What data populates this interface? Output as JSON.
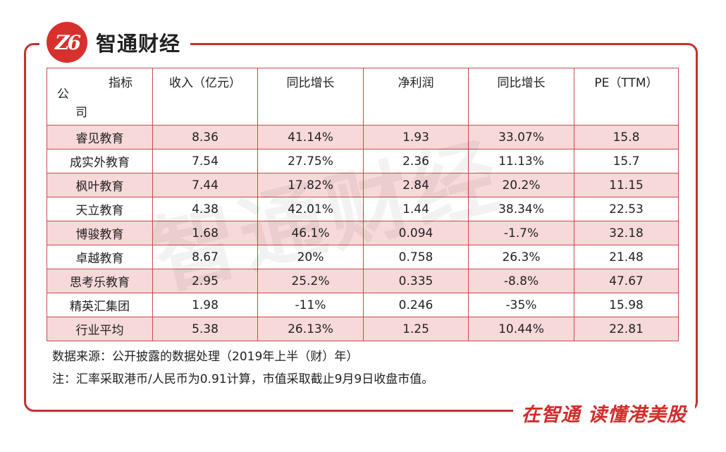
{
  "brand": {
    "logo_text": "Z6",
    "name": "智通财经"
  },
  "watermark": "智通财经",
  "footer_slogan": "在智通  读懂港美股",
  "table": {
    "corner": {
      "top": "指标",
      "bottom1": "公",
      "bottom2": "司"
    },
    "headers": [
      "收入（亿元）",
      "同比增长",
      "净利润",
      "同比增长",
      "PE（TTM）"
    ],
    "rows": [
      {
        "name": "睿见教育",
        "revenue": "8.36",
        "rev_growth": "41.14%",
        "profit": "1.93",
        "profit_growth": "33.07%",
        "pe": "15.8"
      },
      {
        "name": "成实外教育",
        "revenue": "7.54",
        "rev_growth": "27.75%",
        "profit": "2.36",
        "profit_growth": "11.13%",
        "pe": "15.7"
      },
      {
        "name": "枫叶教育",
        "revenue": "7.44",
        "rev_growth": "17.82%",
        "profit": "2.84",
        "profit_growth": "20.2%",
        "pe": "11.15"
      },
      {
        "name": "天立教育",
        "revenue": "4.38",
        "rev_growth": "42.01%",
        "profit": "1.44",
        "profit_growth": "38.34%",
        "pe": "22.53"
      },
      {
        "name": "博骏教育",
        "revenue": "1.68",
        "rev_growth": "46.1%",
        "profit": "0.094",
        "profit_growth": "-1.7%",
        "pe": "32.18"
      },
      {
        "name": "卓越教育",
        "revenue": "8.67",
        "rev_growth": "20%",
        "profit": "0.758",
        "profit_growth": "26.3%",
        "pe": "21.48"
      },
      {
        "name": "思考乐教育",
        "revenue": "2.95",
        "rev_growth": "25.2%",
        "profit": "0.335",
        "profit_growth": "-8.8%",
        "pe": "47.67"
      },
      {
        "name": "精英汇集团",
        "revenue": "1.98",
        "rev_growth": "-11%",
        "profit": "0.246",
        "profit_growth": "-35%",
        "pe": "15.98"
      },
      {
        "name": "行业平均",
        "revenue": "5.38",
        "rev_growth": "26.13%",
        "profit": "1.25",
        "profit_growth": "10.44%",
        "pe": "22.81"
      }
    ]
  },
  "notes": {
    "source": "数据来源：公开披露的数据处理（2019年上半（财）年）",
    "remark": "注：汇率采取港币/人民币为0.91计算，市值采取截止9月9日收盘市值。"
  },
  "colors": {
    "accent": "#d7312d",
    "row_band": "#f7d9d9",
    "border": "#c94a4a"
  }
}
